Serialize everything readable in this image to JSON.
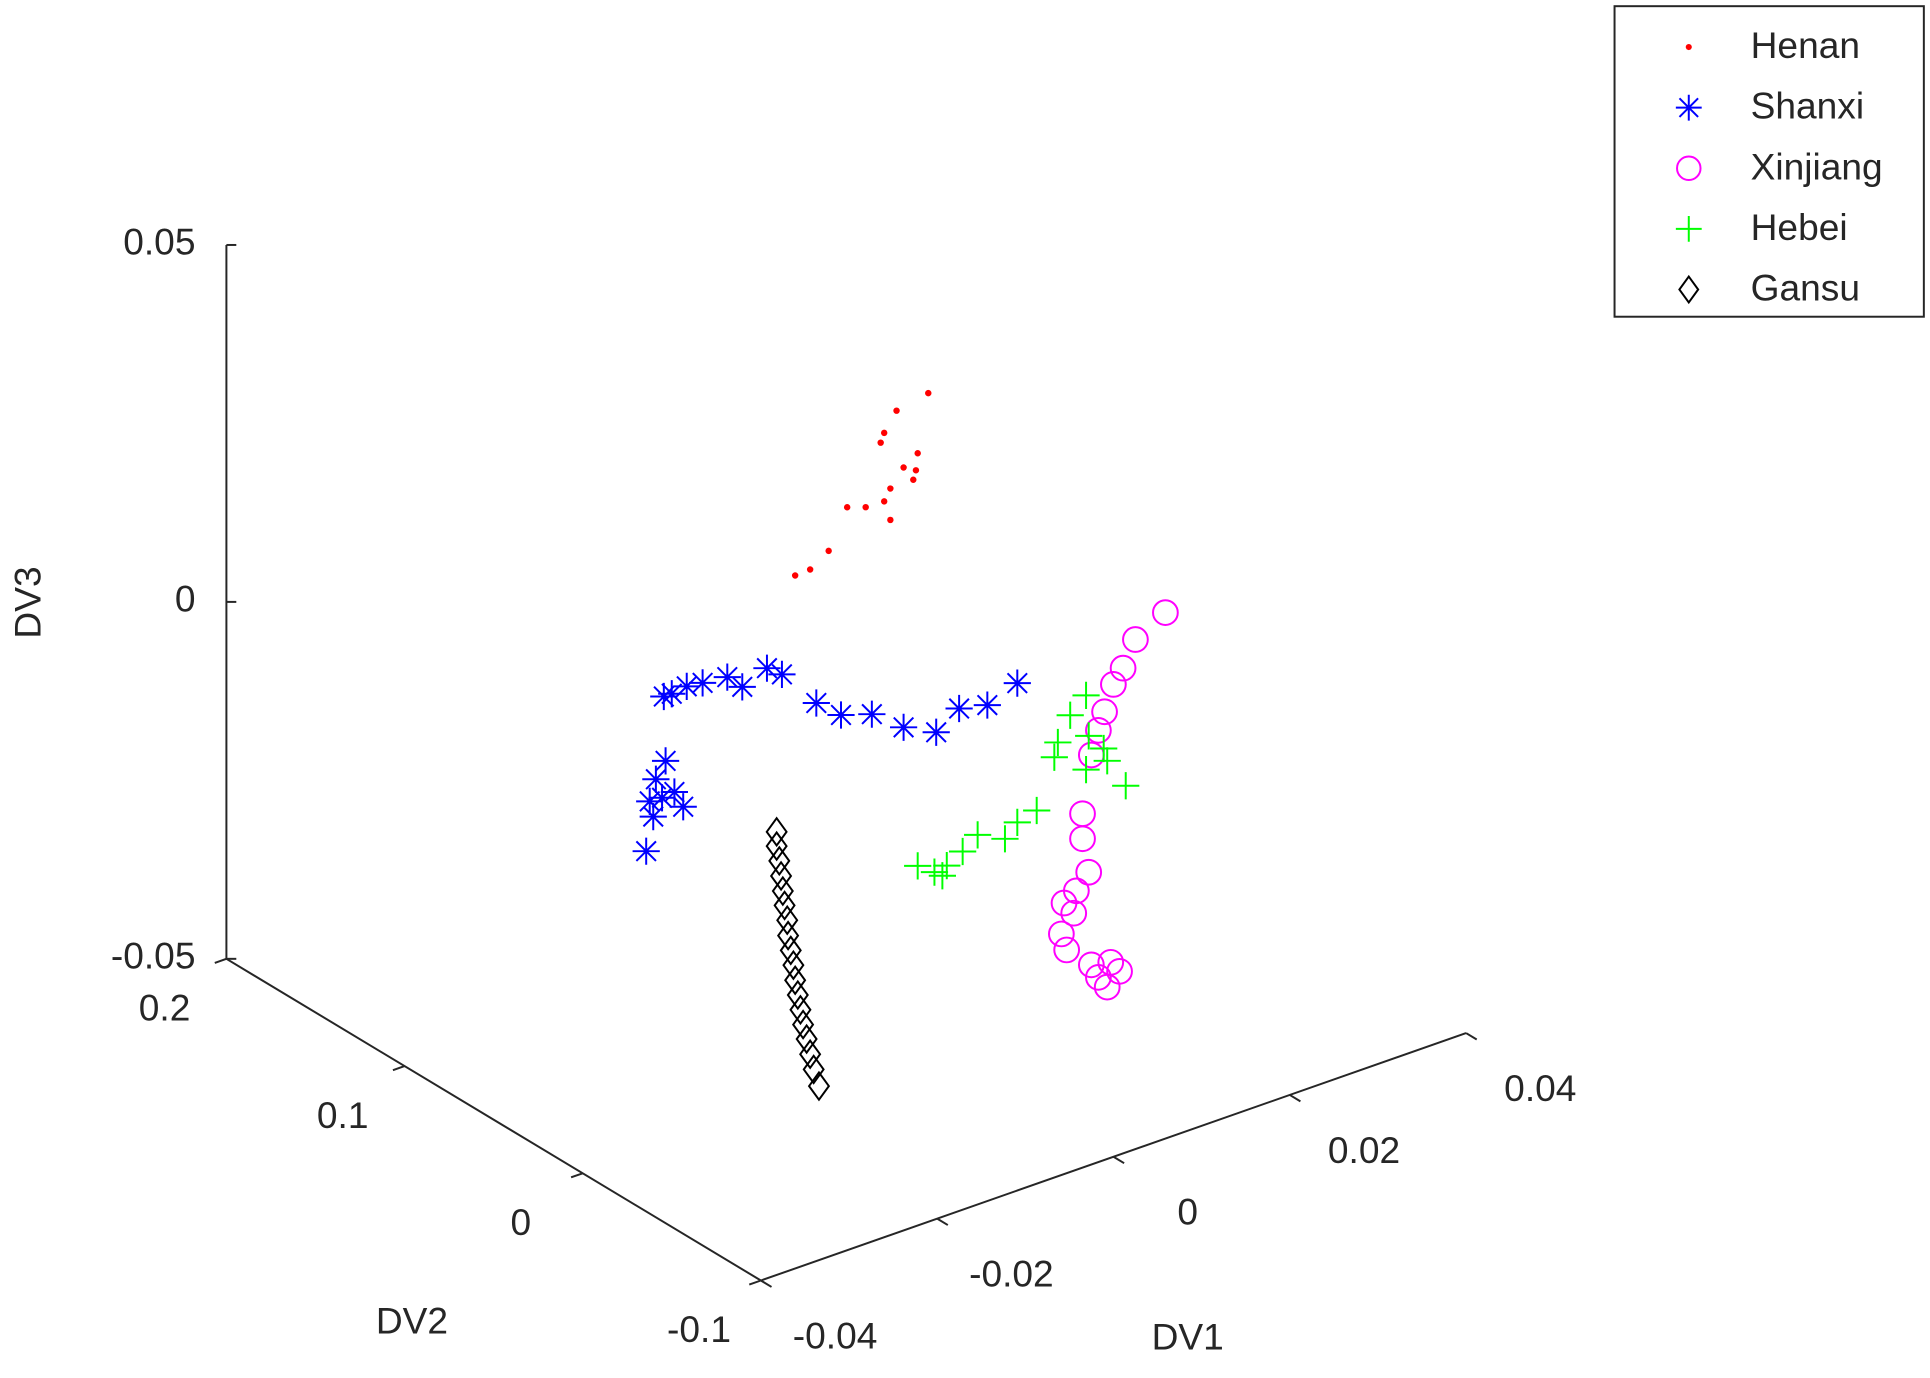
{
  "chart_data": {
    "type": "scatter3d",
    "xlabel": "DV1",
    "ylabel": "DV2",
    "zlabel": "DV3",
    "xlim": [
      -0.04,
      0.04
    ],
    "ylim": [
      -0.1,
      0.2
    ],
    "zlim": [
      -0.05,
      0.05
    ],
    "xticks": [
      -0.04,
      -0.02,
      0,
      0.02,
      0.04
    ],
    "yticks": [
      -0.1,
      0,
      0.1,
      0.2
    ],
    "zticks": [
      -0.05,
      0,
      0.05
    ],
    "legend_position": "northeast outside",
    "series": [
      {
        "name": "Henan",
        "color": "#ff0000",
        "marker": "dot",
        "x": [
          -0.0008,
          -0.0044,
          -0.0058,
          -0.0062,
          -0.002,
          -0.0036,
          -0.0025,
          -0.0051,
          -0.0058,
          -0.0079,
          -0.01,
          -0.0051,
          -0.0121,
          -0.0142,
          -0.0159,
          -0.0022
        ],
        "y": [
          0,
          0,
          0,
          0,
          0,
          0,
          0,
          0,
          0,
          0,
          0,
          0,
          0,
          0,
          0,
          0
        ],
        "z": [
          0.0423,
          0.0414,
          0.0389,
          0.0377,
          0.0344,
          0.0331,
          0.0309,
          0.0308,
          0.0293,
          0.0294,
          0.0303,
          0.0264,
          0.0251,
          0.0234,
          0.0233,
          0.0321
        ]
      },
      {
        "name": "Shanxi",
        "color": "#0000ff",
        "marker": "asterisk",
        "x": [
          0.0093,
          0.0059,
          0.0027,
          0.0001,
          -0.0036,
          -0.0072,
          -0.0107,
          -0.0135,
          -0.0174,
          -0.0191,
          -0.0219,
          -0.0236,
          -0.0264,
          -0.0282,
          -0.0299,
          -0.0308,
          -0.0306,
          -0.0317,
          -0.0296,
          -0.0286,
          -0.032,
          -0.0328,
          -0.031,
          -0.0324
        ],
        "y": [
          0,
          0,
          0,
          0,
          0,
          0,
          0,
          0,
          0,
          0,
          0,
          0,
          0,
          0,
          0,
          0,
          0,
          0,
          0,
          0,
          0,
          0,
          0,
          0
        ],
        "z": [
          -0.0027,
          -0.0043,
          -0.0034,
          -0.0056,
          -0.0033,
          0.0001,
          0.0015,
          0.0044,
          0.0101,
          0.0117,
          0.0103,
          0.0124,
          0.0128,
          0.0131,
          0.0128,
          0.0128,
          0.0037,
          0.0016,
          -0.0011,
          -0.0036,
          -0.0035,
          -0.008,
          -0.0013,
          -0.0012
        ]
      },
      {
        "name": "Xinjiang",
        "color": "#ff00ff",
        "marker": "circle",
        "x": [
          0.0261,
          0.0227,
          0.0213,
          0.0202,
          0.0192,
          0.0185,
          0.0177,
          0.0167,
          0.0167,
          0.0174,
          0.016,
          0.0146,
          0.0157,
          0.0143,
          0.0149,
          0.0177,
          0.0199,
          0.0209,
          0.0185,
          0.0195
        ],
        "y": [
          0,
          0,
          0,
          0,
          0,
          0,
          0,
          0,
          0,
          0,
          0,
          0,
          0,
          0,
          0,
          0,
          0,
          0,
          0,
          0
        ],
        "z": [
          -0.0001,
          -0.0024,
          -0.0058,
          -0.0076,
          -0.011,
          -0.0133,
          -0.0164,
          -0.0242,
          -0.0277,
          -0.0327,
          -0.0347,
          -0.0358,
          -0.0377,
          -0.04,
          -0.0425,
          -0.0458,
          -0.0464,
          -0.0481,
          -0.0479,
          -0.0497
        ]
      },
      {
        "name": "Hebei",
        "color": "#00ff00",
        "marker": "plus",
        "x": [
          0.0171,
          0.0153,
          0.0139,
          0.0135,
          0.0174,
          0.0191,
          0.0195,
          0.0171,
          0.0216,
          0.0115,
          0.0093,
          0.0079,
          0.0048,
          0.0031,
          0.0013,
          -0.0001,
          -0.002,
          0.0008
        ],
        "y": [
          0,
          0,
          0,
          0,
          0,
          0,
          0,
          0,
          0,
          0,
          0,
          0,
          0,
          0,
          0,
          0,
          0,
          0
        ],
        "z": [
          -0.0078,
          -0.0098,
          -0.013,
          -0.0149,
          -0.0136,
          -0.0161,
          -0.018,
          -0.0182,
          -0.0224,
          -0.0215,
          -0.0222,
          -0.0239,
          -0.022,
          -0.0236,
          -0.0248,
          -0.0251,
          -0.0234,
          -0.026
        ]
      },
      {
        "name": "Gansu",
        "color": "#000000",
        "marker": "diamond",
        "x": [
          -0.018,
          -0.018,
          -0.0177,
          -0.0175,
          -0.0173,
          -0.0171,
          -0.0168,
          -0.0167,
          -0.0164,
          -0.0161,
          -0.0159,
          -0.0156,
          -0.0153,
          -0.015,
          -0.0146,
          -0.0142,
          -0.0138,
          -0.0132
        ],
        "y": [
          0,
          0,
          0,
          0,
          0,
          0,
          0,
          0,
          0,
          0,
          0,
          0,
          0,
          0,
          0,
          0,
          0,
          0
        ],
        "z": [
          -0.0117,
          -0.0137,
          -0.0159,
          -0.0181,
          -0.0203,
          -0.0224,
          -0.0246,
          -0.0268,
          -0.029,
          -0.0312,
          -0.0334,
          -0.0356,
          -0.0378,
          -0.04,
          -0.0422,
          -0.0445,
          -0.0468,
          -0.0494
        ]
      }
    ]
  }
}
